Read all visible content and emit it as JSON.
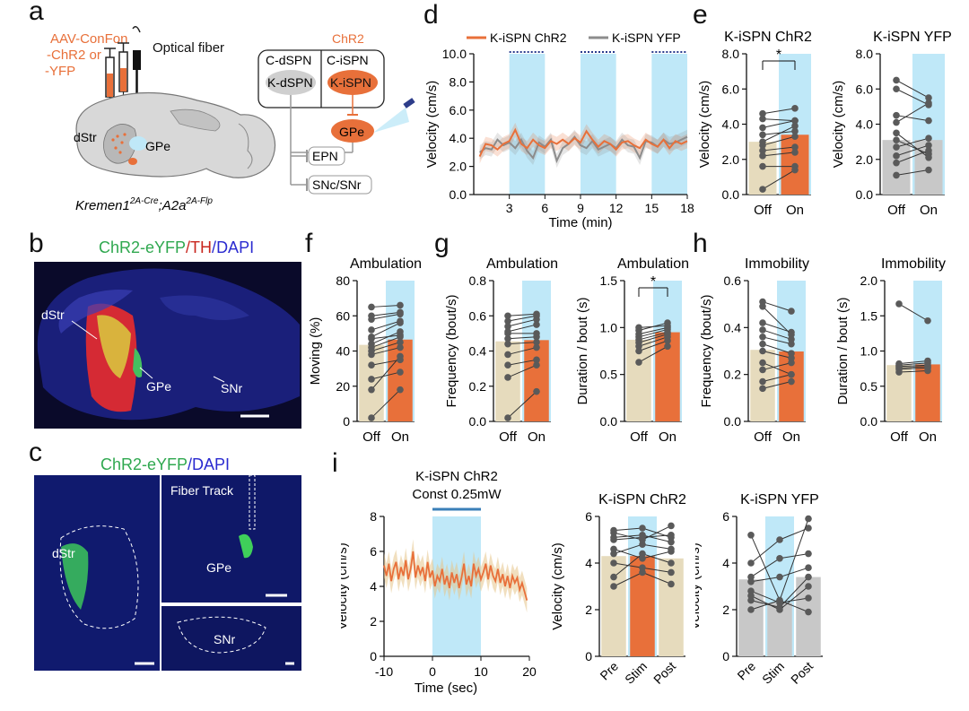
{
  "panels": {
    "a": {
      "letter": "a",
      "virus": [
        "AAV-ConFon",
        "-ChR2 or",
        "-YFP"
      ],
      "fiber": "Optical fiber",
      "dstr": "dStr",
      "gpe": "GPe",
      "genotype": "Kremen1",
      "genotype_sup1": "2A-Cre",
      "genotype_mid": ";A2a",
      "genotype_sup2": "2A-Flp",
      "circuit": {
        "chr2": "ChR2",
        "cdspn": "C-dSPN",
        "cispn": "C-iSPN",
        "kdspn": "K-dSPN",
        "kispn": "K-iSPN",
        "gpe": "GPe",
        "epn": "EPN",
        "snc": "SNc/SNr"
      }
    },
    "b": {
      "letter": "b",
      "title_green": "ChR2-eYFP",
      "title_sep": "/",
      "title_red": "TH",
      "title_sep2": "/",
      "title_blue": "DAPI",
      "labels": [
        "dStr",
        "GPe",
        "SNr"
      ]
    },
    "c": {
      "letter": "c",
      "title_green": "ChR2-eYFP",
      "title_sep": "/",
      "title_blue": "DAPI",
      "labels": [
        "dStr",
        "Fiber Track",
        "GPe",
        "SNr"
      ]
    },
    "d": {
      "letter": "d"
    },
    "e": {
      "letter": "e"
    },
    "f": {
      "letter": "f"
    },
    "g": {
      "letter": "g"
    },
    "h": {
      "letter": "h"
    },
    "i": {
      "letter": "i",
      "stim_title": "K-iSPN ChR2",
      "stim_power": "Const 0.25mW"
    }
  },
  "colors": {
    "chr2": "#e8703a",
    "yfp": "#8c8c8c",
    "off_bar": "#e6dbbd",
    "yfp_bar": "#c8c8c8",
    "light": "#bfe8f8",
    "dots": "#5a5a5a"
  },
  "chart_data": [
    {
      "id": "d",
      "type": "line",
      "legend": [
        "K-iSPN ChR2",
        "K-iSPN YFP"
      ],
      "xlabel": "Time (min)",
      "ylabel": "Velocity (cm/s)",
      "xlim": [
        0,
        18
      ],
      "ylim": [
        0,
        10
      ],
      "xticks": [
        "3",
        "6",
        "9",
        "12",
        "15",
        "18"
      ],
      "yticks": [
        "0.0",
        "2.0",
        "4.0",
        "6.0",
        "8.0",
        "10.0"
      ],
      "stim_windows": [
        [
          3,
          6
        ],
        [
          9,
          12
        ],
        [
          15,
          18
        ]
      ],
      "series": [
        {
          "name": "K-iSPN ChR2",
          "x": [
            0.5,
            1,
            1.5,
            2,
            2.5,
            3,
            3.5,
            4,
            4.5,
            5,
            5.5,
            6,
            6.5,
            7,
            7.5,
            8,
            8.5,
            9,
            9.5,
            10,
            10.5,
            11,
            11.5,
            12,
            12.5,
            13,
            13.5,
            14,
            14.5,
            15,
            15.5,
            16,
            16.5,
            17,
            17.5,
            18
          ],
          "y": [
            2.7,
            3.6,
            3.5,
            3.2,
            3.6,
            3.8,
            4.6,
            3.6,
            3.3,
            3.9,
            3.5,
            3.3,
            3.8,
            3.6,
            3.9,
            3.6,
            4.0,
            3.7,
            4.5,
            3.9,
            3.4,
            3.8,
            3.6,
            3.2,
            3.7,
            3.8,
            3.5,
            3.3,
            3.9,
            3.6,
            3.4,
            3.9,
            3.3,
            3.8,
            3.6,
            3.8
          ]
        },
        {
          "name": "K-iSPN YFP",
          "x": [
            0.5,
            1,
            1.5,
            2,
            2.5,
            3,
            3.5,
            4,
            4.5,
            5,
            5.5,
            6,
            6.5,
            7,
            7.5,
            8,
            8.5,
            9,
            9.5,
            10,
            10.5,
            11,
            11.5,
            12,
            12.5,
            13,
            13.5,
            14,
            14.5,
            15,
            15.5,
            16,
            16.5,
            17,
            17.5,
            18
          ],
          "y": [
            3.0,
            3.3,
            3.2,
            3.9,
            3.5,
            3.7,
            3.3,
            3.9,
            3.1,
            2.6,
            3.7,
            3.4,
            3.9,
            2.4,
            3.3,
            3.6,
            4.1,
            3.5,
            3.3,
            3.8,
            3.2,
            3.4,
            3.6,
            3.3,
            3.9,
            3.5,
            3.4,
            2.6,
            3.8,
            3.7,
            3.4,
            3.9,
            3.6,
            3.7,
            3.9,
            4.1
          ]
        }
      ]
    },
    {
      "id": "e1",
      "type": "bar",
      "title": "K-iSPN ChR2",
      "ylabel": "Velocity (cm/s)",
      "categories": [
        "Off",
        "On"
      ],
      "values": [
        3.0,
        3.4
      ],
      "ylim": [
        0,
        8
      ],
      "yticks": [
        "0.0",
        "2.0",
        "4.0",
        "6.0",
        "8.0"
      ],
      "light_on": [
        1
      ],
      "sig": "*",
      "palette": "chr2",
      "pairs": [
        [
          0.3,
          1.4
        ],
        [
          1.6,
          1.6
        ],
        [
          2.2,
          2.4
        ],
        [
          2.5,
          2.7
        ],
        [
          2.8,
          3.3
        ],
        [
          3.0,
          3.9
        ],
        [
          3.4,
          3.6
        ],
        [
          3.8,
          4.2
        ],
        [
          4.3,
          4.2
        ],
        [
          4.6,
          4.9
        ]
      ]
    },
    {
      "id": "e2",
      "type": "bar",
      "title": "K-iSPN YFP",
      "ylabel": "Velocity (cm/s)",
      "categories": [
        "Off",
        "On"
      ],
      "values": [
        3.1,
        3.1
      ],
      "ylim": [
        0,
        8
      ],
      "yticks": [
        "0.0",
        "2.0",
        "4.0",
        "6.0",
        "8.0"
      ],
      "light_on": [
        1
      ],
      "palette": "yfp",
      "pairs": [
        [
          1.1,
          1.4
        ],
        [
          1.8,
          2.5
        ],
        [
          2.2,
          2.8
        ],
        [
          2.7,
          3.2
        ],
        [
          3.1,
          2.3
        ],
        [
          3.5,
          2.1
        ],
        [
          4.1,
          5.2
        ],
        [
          4.5,
          4.2
        ],
        [
          6.0,
          5.1
        ],
        [
          6.5,
          5.5
        ]
      ]
    },
    {
      "id": "f",
      "type": "bar",
      "title": "Ambulation",
      "ylabel": "Moving (%)",
      "categories": [
        "Off",
        "On"
      ],
      "values": [
        43.5,
        46.5
      ],
      "ylim": [
        0,
        80
      ],
      "yticks": [
        "0",
        "20",
        "40",
        "60",
        "80"
      ],
      "light_on": [
        1
      ],
      "palette": "chr2",
      "pairs": [
        [
          2,
          18
        ],
        [
          18,
          37
        ],
        [
          24,
          28
        ],
        [
          32,
          35
        ],
        [
          38,
          42
        ],
        [
          40,
          45
        ],
        [
          42,
          48
        ],
        [
          44,
          51
        ],
        [
          47,
          49
        ],
        [
          48,
          56
        ],
        [
          52,
          57
        ],
        [
          58,
          61
        ],
        [
          60,
          62
        ],
        [
          65,
          66
        ]
      ]
    },
    {
      "id": "g1",
      "type": "bar",
      "title": "Ambulation",
      "ylabel": "Frequency (bout/s)",
      "categories": [
        "Off",
        "On"
      ],
      "values": [
        0.455,
        0.462
      ],
      "ylim": [
        0,
        0.8
      ],
      "yticks": [
        "0.0",
        "0.2",
        "0.4",
        "0.6",
        "0.8"
      ],
      "light_on": [
        1
      ],
      "palette": "chr2",
      "pairs": [
        [
          0.02,
          0.17
        ],
        [
          0.25,
          0.32
        ],
        [
          0.32,
          0.35
        ],
        [
          0.38,
          0.42
        ],
        [
          0.44,
          0.45
        ],
        [
          0.47,
          0.48
        ],
        [
          0.5,
          0.5
        ],
        [
          0.51,
          0.55
        ],
        [
          0.54,
          0.58
        ],
        [
          0.57,
          0.6
        ],
        [
          0.6,
          0.61
        ]
      ]
    },
    {
      "id": "g2",
      "type": "bar",
      "title": "Ambulation",
      "ylabel": "Duration / bout (s)",
      "categories": [
        "Off",
        "On"
      ],
      "values": [
        0.87,
        0.95
      ],
      "ylim": [
        0,
        1.5
      ],
      "yticks": [
        "0.0",
        "0.5",
        "1.0",
        "1.5"
      ],
      "light_on": [
        1
      ],
      "sig": "*",
      "palette": "chr2",
      "pairs": [
        [
          0.63,
          0.8
        ],
        [
          0.75,
          0.86
        ],
        [
          0.8,
          0.9
        ],
        [
          0.84,
          0.93
        ],
        [
          0.87,
          0.95
        ],
        [
          0.9,
          0.98
        ],
        [
          0.93,
          1.0
        ],
        [
          0.97,
          1.05
        ],
        [
          1.0,
          1.02
        ]
      ]
    },
    {
      "id": "h1",
      "type": "bar",
      "title": "Immobility",
      "ylabel": "Frequency (bout/s)",
      "categories": [
        "Off",
        "On"
      ],
      "values": [
        0.305,
        0.298
      ],
      "ylim": [
        0,
        0.6
      ],
      "yticks": [
        "0.0",
        "0.2",
        "0.4",
        "0.6"
      ],
      "light_on": [
        1
      ],
      "palette": "chr2",
      "pairs": [
        [
          0.14,
          0.17
        ],
        [
          0.17,
          0.2
        ],
        [
          0.22,
          0.25
        ],
        [
          0.25,
          0.2
        ],
        [
          0.3,
          0.27
        ],
        [
          0.33,
          0.29
        ],
        [
          0.36,
          0.33
        ],
        [
          0.39,
          0.35
        ],
        [
          0.42,
          0.38
        ],
        [
          0.49,
          0.37
        ],
        [
          0.51,
          0.47
        ]
      ]
    },
    {
      "id": "h2",
      "type": "bar",
      "title": "Immobility",
      "ylabel": "Duration / bout (s)",
      "categories": [
        "Off",
        "On"
      ],
      "values": [
        0.8,
        0.81
      ],
      "ylim": [
        0,
        2.0
      ],
      "yticks": [
        "0.0",
        "0.5",
        "1.0",
        "1.5",
        "2.0"
      ],
      "light_on": [
        1
      ],
      "palette": "chr2",
      "pairs": [
        [
          0.7,
          0.72
        ],
        [
          0.74,
          0.76
        ],
        [
          0.76,
          0.78
        ],
        [
          0.78,
          0.8
        ],
        [
          0.8,
          0.83
        ],
        [
          0.82,
          0.86
        ],
        [
          1.67,
          1.43
        ]
      ]
    },
    {
      "id": "i1",
      "type": "line",
      "ylabel": "Velocity (cm/s)",
      "xlabel": "Time (sec)",
      "xlim": [
        -10,
        20
      ],
      "ylim": [
        0,
        8
      ],
      "xticks": [
        "-10",
        "0",
        "10",
        "20"
      ],
      "yticks": [
        "0",
        "2",
        "4",
        "6",
        "8"
      ],
      "stim_window": [
        0,
        10
      ],
      "series": [
        {
          "name": "K-iSPN ChR2",
          "x": [
            -10,
            -9.5,
            -9,
            -8.5,
            -8,
            -7.5,
            -7,
            -6.5,
            -6,
            -5.5,
            -5,
            -4.5,
            -4,
            -3.5,
            -3,
            -2.5,
            -2,
            -1.5,
            -1,
            -0.5,
            0,
            0.5,
            1,
            1.5,
            2,
            2.5,
            3,
            3.5,
            4,
            4.5,
            5,
            5.5,
            6,
            6.5,
            7,
            7.5,
            8,
            8.5,
            9,
            9.5,
            10,
            10.5,
            11,
            11.5,
            12,
            12.5,
            13,
            13.5,
            14,
            14.5,
            15,
            15.5,
            16,
            16.5,
            17,
            17.5,
            18,
            18.5,
            19,
            19.5
          ],
          "y": [
            5.2,
            4.6,
            5.3,
            4.3,
            5.0,
            5.4,
            4.4,
            5.1,
            4.6,
            5.5,
            4.4,
            5.0,
            6.0,
            4.5,
            5.2,
            4.7,
            5.1,
            4.3,
            5.4,
            4.5,
            4.9,
            4.0,
            4.6,
            4.3,
            5.0,
            4.1,
            4.6,
            3.9,
            4.8,
            4.2,
            4.7,
            3.9,
            4.5,
            5.3,
            4.1,
            4.6,
            4.0,
            5.3,
            4.6,
            5.0,
            4.4,
            4.8,
            5.3,
            4.4,
            5.2,
            4.6,
            4.3,
            5.0,
            4.2,
            4.7,
            4.0,
            4.6,
            3.9,
            4.6,
            4.2,
            4.5,
            3.8,
            4.2,
            3.7,
            3.2
          ]
        }
      ]
    },
    {
      "id": "i2",
      "type": "bar",
      "title": "K-iSPN ChR2",
      "ylabel": "Velocity (cm/s)",
      "categories": [
        "Pre",
        "Stim",
        "Post"
      ],
      "values": [
        4.3,
        4.3,
        4.2
      ],
      "ylim": [
        0,
        6
      ],
      "yticks": [
        "0",
        "2",
        "4",
        "6"
      ],
      "light_on": [
        1
      ],
      "palette": "chr2",
      "triples": [
        [
          3.0,
          3.6,
          3.1
        ],
        [
          3.4,
          4.4,
          4.0
        ],
        [
          4.0,
          3.8,
          3.6
        ],
        [
          4.4,
          4.8,
          4.6
        ],
        [
          4.6,
          4.2,
          4.5
        ],
        [
          5.0,
          5.1,
          5.2
        ],
        [
          5.1,
          5.2,
          4.9
        ],
        [
          5.3,
          5.0,
          5.6
        ],
        [
          5.4,
          5.5,
          5.1
        ]
      ]
    },
    {
      "id": "i3",
      "type": "bar",
      "title": "K-iSPN YFP",
      "ylabel": "Velocity (cm/s)",
      "categories": [
        "Pre",
        "Stim",
        "Post"
      ],
      "values": [
        3.3,
        2.3,
        3.4
      ],
      "ylim": [
        0,
        6
      ],
      "yticks": [
        "0",
        "2",
        "4",
        "6"
      ],
      "light_on": [
        1
      ],
      "palette": "yfp",
      "triples": [
        [
          2.0,
          2.4,
          1.9
        ],
        [
          2.4,
          2.1,
          3.4
        ],
        [
          2.8,
          2.3,
          2.5
        ],
        [
          3.2,
          3.4,
          3.8
        ],
        [
          3.4,
          4.2,
          4.4
        ],
        [
          4.0,
          5.0,
          5.5
        ],
        [
          5.2,
          2.4,
          5.9
        ],
        [
          2.6,
          2.0,
          3.0
        ]
      ]
    }
  ]
}
